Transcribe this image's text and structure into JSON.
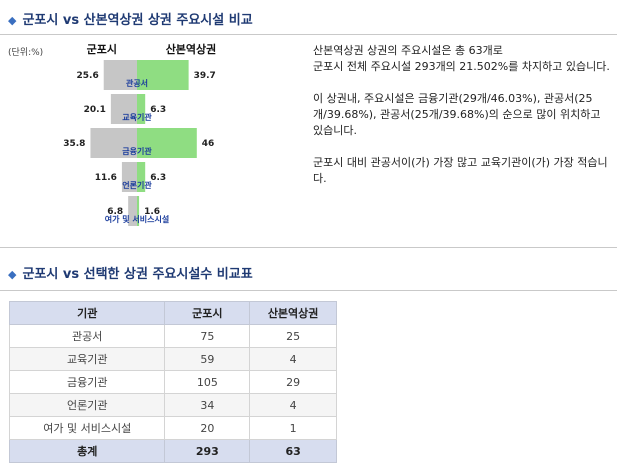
{
  "section1": {
    "title": "군포시 vs 산본역상권 상권 주요시설 비교"
  },
  "section2": {
    "title": "군포시 vs 선택한 상권 주요시설수 비교표"
  },
  "chart_data": {
    "type": "bar",
    "unit_label": "(단위:%)",
    "series": [
      {
        "name": "군포시",
        "color": "#c6c6c6",
        "values": [
          25.6,
          20.1,
          35.8,
          11.6,
          6.8
        ]
      },
      {
        "name": "산본역상권",
        "color": "#8fdd82",
        "values": [
          39.7,
          6.3,
          46,
          6.3,
          1.6
        ]
      }
    ],
    "categories": [
      "관공서",
      "교육기관",
      "금융기관",
      "언론기관",
      "여가 및 서비스시설"
    ],
    "value_labels_left": [
      "25.6",
      "20.1",
      "35.8",
      "11.6",
      "6.8"
    ],
    "value_labels_right": [
      "39.7",
      "6.3",
      "46",
      "6.3",
      "1.6"
    ]
  },
  "summary": {
    "paragraphs": [
      "산본역상권 상권의 주요시설은 총 63개로\n군포시 전체 주요시설 293개의 21.502%를 차지하고 있습니다.",
      "이 상권내, 주요시설은 금융기관(29개/46.03%), 관공서(25개/39.68%), 관공서(25개/39.68%)의 순으로 많이 위치하고 있습니다.",
      "군포시 대비 관공서이(가) 가장 많고 교육기관이(가) 가장 적습니다."
    ]
  },
  "table": {
    "headers": [
      "기관",
      "군포시",
      "산본역상권"
    ],
    "rows": [
      [
        "관공서",
        "75",
        "25"
      ],
      [
        "교육기관",
        "59",
        "4"
      ],
      [
        "금융기관",
        "105",
        "29"
      ],
      [
        "언론기관",
        "34",
        "4"
      ],
      [
        "여가 및 서비스시설",
        "20",
        "1"
      ]
    ],
    "total": [
      "총계",
      "293",
      "63"
    ]
  },
  "colors": {
    "title": "#1f3a73",
    "left_bar": "#c6c6c6",
    "right_bar": "#8fdd82",
    "header_bg": "#d7ddef"
  }
}
